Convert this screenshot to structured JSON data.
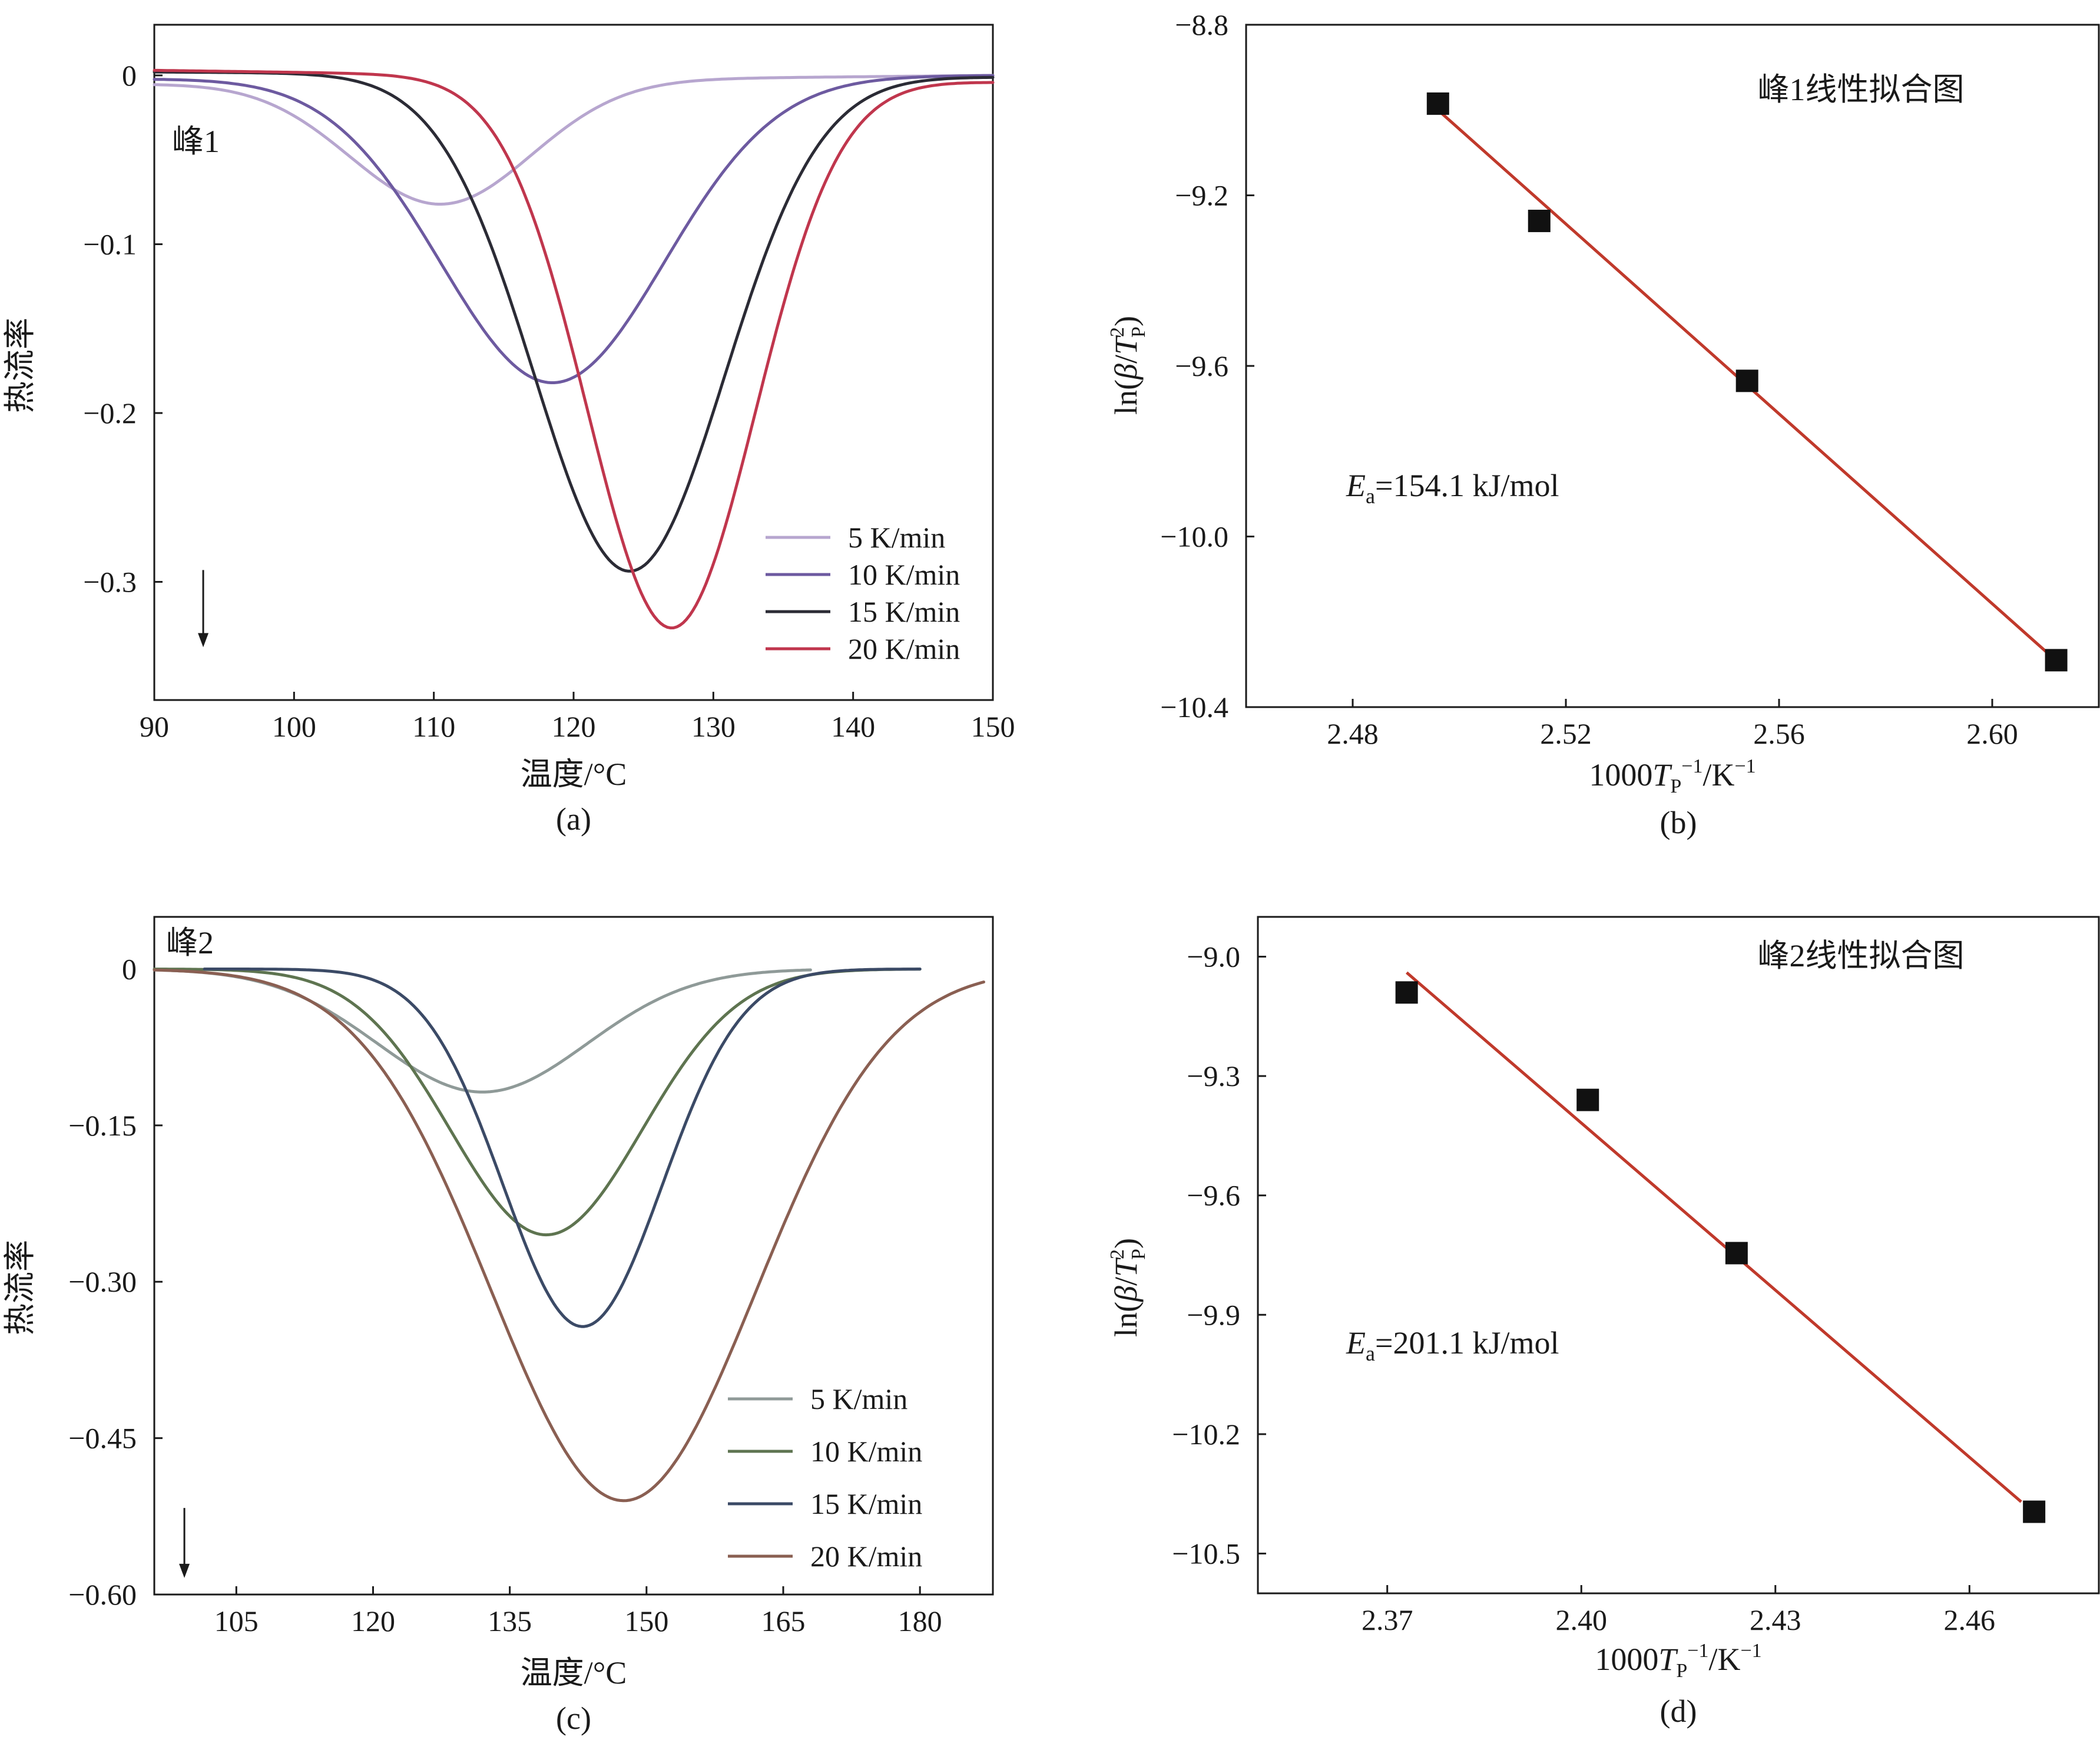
{
  "chart_data": [
    {
      "id": "a",
      "type": "line",
      "panel_label": "(a)",
      "xlabel": "温度/°C",
      "ylabel": "热流率",
      "annotation": "峰1",
      "xlim": [
        90,
        150
      ],
      "ylim": [
        -0.37,
        0.03
      ],
      "xticks": [
        90,
        100,
        110,
        120,
        130,
        140,
        150
      ],
      "yticks": [
        0,
        -0.1,
        -0.2,
        -0.3
      ],
      "ytick_labels": [
        "0",
        "−0.1",
        "−0.2",
        "−0.3"
      ],
      "arrow": {
        "x": 93.5,
        "y_from": -0.293,
        "y_to": -0.338
      },
      "series": [
        {
          "name": "5 K/min",
          "color": "#b7a6cf",
          "start_x": 90,
          "end_x": 150,
          "base_start": -0.005,
          "base_end": 0,
          "peak_x": 110.5,
          "peak_y": -0.073,
          "sigma": 6.5
        },
        {
          "name": "10 K/min",
          "color": "#6d5aa0",
          "start_x": 90,
          "end_x": 150,
          "base_start": -0.002,
          "base_end": 0,
          "peak_x": 118.5,
          "peak_y": -0.181,
          "sigma": 8.0
        },
        {
          "name": "15 K/min",
          "color": "#2b2b35",
          "start_x": 90,
          "end_x": 150,
          "base_start": 0.002,
          "base_end": -0.001,
          "peak_x": 124,
          "peak_y": -0.294,
          "sigma": 6.8
        },
        {
          "name": "20 K/min",
          "color": "#c0364d",
          "start_x": 90,
          "end_x": 150,
          "base_start": 0.003,
          "base_end": -0.004,
          "peak_x": 127,
          "peak_y": -0.326,
          "sigma": 6.0
        }
      ]
    },
    {
      "id": "b",
      "type": "scatter",
      "panel_label": "(b)",
      "xlabel": "1000T_P^-1/K^-1",
      "ylabel": "ln(β/T_P^2)",
      "title": "峰1线性拟合图",
      "equation_var": "E",
      "equation_sub": "a",
      "equation_value": "=154.1 kJ/mol",
      "xlim": [
        2.46,
        2.62
      ],
      "ylim": [
        -10.4,
        -8.8
      ],
      "xticks": [
        2.48,
        2.52,
        2.56,
        2.6
      ],
      "xtick_labels": [
        "2.48",
        "2.52",
        "2.56",
        "2.60"
      ],
      "yticks": [
        -8.8,
        -9.2,
        -9.6,
        -10.0,
        -10.4
      ],
      "ytick_labels": [
        "−8.8",
        "−9.2",
        "−9.6",
        "−10.0",
        "−10.4"
      ],
      "x": [
        2.496,
        2.515,
        2.554,
        2.612
      ],
      "y": [
        -8.985,
        -9.26,
        -9.635,
        -10.29
      ],
      "fit": {
        "x": [
          2.496,
          2.611
        ],
        "y": [
          -9.0,
          -10.28
        ],
        "color": "#c0392b"
      }
    },
    {
      "id": "c",
      "type": "line",
      "panel_label": "(c)",
      "xlabel": "温度/°C",
      "ylabel": "热流率",
      "annotation": "峰2",
      "xlim": [
        96,
        188
      ],
      "ylim": [
        -0.6,
        0.05
      ],
      "xticks": [
        105,
        120,
        135,
        150,
        165,
        180
      ],
      "yticks": [
        0,
        -0.15,
        -0.3,
        -0.45,
        -0.6
      ],
      "ytick_labels": [
        "0",
        "−0.15",
        "−0.30",
        "−0.45",
        "−0.60"
      ],
      "arrow": {
        "x": 99.3,
        "y_from": -0.517,
        "y_to": -0.583
      },
      "series": [
        {
          "name": "5 K/min",
          "color": "#8f9a98",
          "start_x": 96,
          "end_x": 168,
          "base_start": 0,
          "base_end": 0,
          "peak_x": 132,
          "peak_y": -0.118,
          "sigma": 11.5
        },
        {
          "name": "10 K/min",
          "color": "#5e7450",
          "start_x": 96,
          "end_x": 180,
          "base_start": 0,
          "base_end": 0,
          "peak_x": 139,
          "peak_y": -0.255,
          "sigma": 10.5
        },
        {
          "name": "15 K/min",
          "color": "#3b4a66",
          "start_x": 101.5,
          "end_x": 180,
          "base_start": 0,
          "base_end": 0,
          "peak_x": 143,
          "peak_y": -0.343,
          "sigma": 8.7
        },
        {
          "name": "20 K/min",
          "color": "#8a5f52",
          "start_x": 96,
          "end_x": 187,
          "base_start": 0,
          "base_end": 0,
          "peak_x": 147.5,
          "peak_y": -0.51,
          "sigma": 14.5
        }
      ]
    },
    {
      "id": "d",
      "type": "scatter",
      "panel_label": "(d)",
      "xlabel": "1000T_P^-1/K^-1",
      "ylabel": "ln(β/T_P^2)",
      "title": "峰2线性拟合图",
      "equation_var": "E",
      "equation_sub": "a",
      "equation_value": "=201.1 kJ/mol",
      "xlim": [
        2.35,
        2.48
      ],
      "ylim": [
        -10.6,
        -8.9
      ],
      "xticks": [
        2.37,
        2.4,
        2.43,
        2.46
      ],
      "xtick_labels": [
        "2.37",
        "2.40",
        "2.43",
        "2.46"
      ],
      "yticks": [
        -9.0,
        -9.3,
        -9.6,
        -9.9,
        -10.2,
        -10.5
      ],
      "ytick_labels": [
        "−9.0",
        "−9.3",
        "−9.6",
        "−9.9",
        "−10.2",
        "−10.5"
      ],
      "x": [
        2.373,
        2.401,
        2.424,
        2.47
      ],
      "y": [
        -9.09,
        -9.36,
        -9.745,
        -10.395
      ],
      "fit": {
        "x": [
          2.373,
          2.468
        ],
        "y": [
          -9.04,
          -10.37
        ],
        "color": "#c0392b"
      }
    }
  ]
}
